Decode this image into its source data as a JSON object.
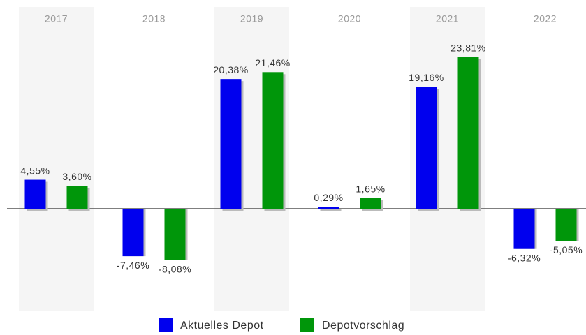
{
  "chart_data": {
    "type": "bar",
    "categories": [
      "2017",
      "2018",
      "2019",
      "2020",
      "2021",
      "2022"
    ],
    "series": [
      {
        "name": "Aktuelles Depot",
        "color": "#0000ee",
        "values": [
          4.55,
          -7.46,
          20.38,
          0.29,
          19.16,
          -6.32
        ],
        "value_labels": [
          "4,55%",
          "-7,46%",
          "20,38%",
          "0,29%",
          "19,16%",
          "-6,32%"
        ]
      },
      {
        "name": "Depotvorschlag",
        "color": "#00960a",
        "values": [
          3.6,
          -8.08,
          21.46,
          1.65,
          23.81,
          -5.05
        ],
        "value_labels": [
          "3,60%",
          "-8,08%",
          "21,46%",
          "1,65%",
          "23,81%",
          "-5,05%"
        ]
      }
    ],
    "ylim": [
      -16,
      28.4
    ],
    "legend": "bottom"
  }
}
